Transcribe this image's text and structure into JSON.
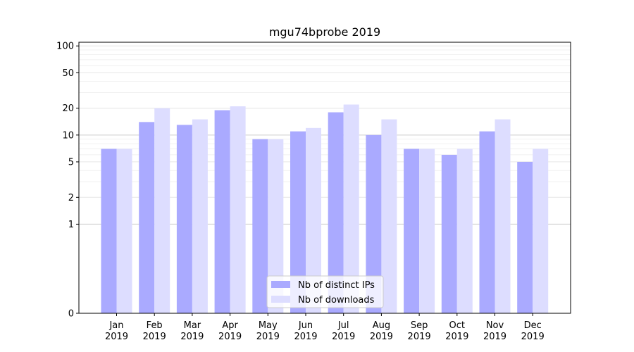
{
  "chart_data": {
    "type": "bar",
    "title": "mgu74bprobe 2019",
    "xlabel": "",
    "ylabel": "",
    "categories": [
      [
        "Jan",
        "2019"
      ],
      [
        "Feb",
        "2019"
      ],
      [
        "Mar",
        "2019"
      ],
      [
        "Apr",
        "2019"
      ],
      [
        "May",
        "2019"
      ],
      [
        "Jun",
        "2019"
      ],
      [
        "Jul",
        "2019"
      ],
      [
        "Aug",
        "2019"
      ],
      [
        "Sep",
        "2019"
      ],
      [
        "Oct",
        "2019"
      ],
      [
        "Nov",
        "2019"
      ],
      [
        "Dec",
        "2019"
      ]
    ],
    "series": [
      {
        "name": "Nb of distinct IPs",
        "color": "#aaaaff",
        "values": [
          7,
          14,
          13,
          19,
          9,
          11,
          18,
          10,
          7,
          6,
          11,
          5
        ]
      },
      {
        "name": "Nb of downloads",
        "color": "#ddddff",
        "values": [
          7,
          20,
          15,
          21,
          9,
          12,
          22,
          15,
          7,
          7,
          15,
          7
        ]
      }
    ],
    "y_scale": "symlog",
    "y_ticks": [
      0,
      1,
      2,
      5,
      10,
      20,
      50,
      100
    ],
    "ylim": [
      0,
      110
    ],
    "legend": {
      "placement": "bottom-center"
    },
    "grid": true
  }
}
